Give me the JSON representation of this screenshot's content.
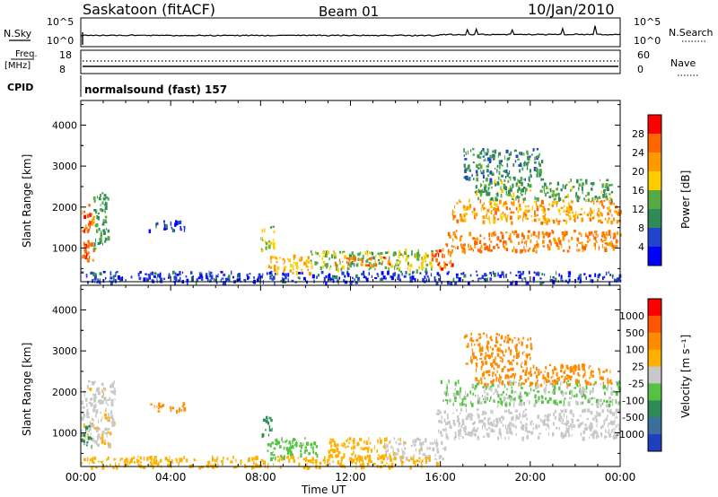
{
  "header": {
    "station": "Saskatoon (fitACF)",
    "beam": "Beam 01",
    "date": "10/Jan/2010"
  },
  "status_rows": {
    "nsky": {
      "label": "N.Sky",
      "ticks": [
        "10^5",
        "10^0"
      ]
    },
    "nsearch": {
      "label": "N.Search",
      "ticks": [
        "10^5",
        "10^0"
      ]
    },
    "freq": {
      "label_top": "Freq.",
      "label_bottom": "[MHz]",
      "ticks": [
        "18",
        "8"
      ]
    },
    "nave": {
      "label": "Nave",
      "ticks": [
        "60",
        "0"
      ]
    },
    "cpid": {
      "label": "CPID",
      "value": "normalsound (fast) 157"
    }
  },
  "time_axis": {
    "label": "Time UT",
    "ticks": [
      "00:00",
      "04:00",
      "08:00",
      "12:00",
      "16:00",
      "20:00",
      "00:00"
    ]
  },
  "colors": {
    "power": [
      "#0000ff",
      "#2244cc",
      "#2e8b57",
      "#55aa44",
      "#ffcc00",
      "#ff9900",
      "#ff6600",
      "#ff0000"
    ],
    "velocity": [
      "#1e3fbf",
      "#3a6fa0",
      "#2e8b57",
      "#55c244",
      "#c8c8c8",
      "#ffb000",
      "#ff8c00",
      "#ff5500",
      "#ff0000"
    ]
  },
  "chart_data": [
    {
      "type": "heatmap",
      "quantity": "power",
      "ylabel": "Slant Range [km]",
      "yticks": [
        "1000",
        "2000",
        "3000",
        "4000"
      ],
      "ylim": [
        180,
        4600
      ],
      "xlim": [
        0,
        24
      ],
      "colorbar": {
        "label": "Power [dB]",
        "ticks": [
          "4",
          "8",
          "12",
          "16",
          "20",
          "24",
          "28"
        ],
        "range": [
          0,
          32
        ]
      },
      "regions": [
        {
          "t0": 0.0,
          "t1": 0.55,
          "r0": 700,
          "r1": 2100,
          "v": 26
        },
        {
          "t0": 0.55,
          "t1": 1.2,
          "r0": 1000,
          "r1": 2400,
          "v": 12
        },
        {
          "t0": 3.0,
          "t1": 4.6,
          "r0": 1450,
          "r1": 1700,
          "v": 5
        },
        {
          "t0": 8.0,
          "t1": 8.6,
          "r0": 950,
          "r1": 1550,
          "v": 16
        },
        {
          "t0": 8.3,
          "t1": 10.2,
          "r0": 400,
          "r1": 850,
          "v": 20
        },
        {
          "t0": 10.2,
          "t1": 14.2,
          "r0": 500,
          "r1": 950,
          "v": 14
        },
        {
          "t0": 11.2,
          "t1": 13.8,
          "r0": 600,
          "r1": 800,
          "v": 25
        },
        {
          "t0": 14.0,
          "t1": 15.6,
          "r0": 450,
          "r1": 1000,
          "v": 16
        },
        {
          "t0": 15.6,
          "t1": 16.5,
          "r0": 500,
          "r1": 1000,
          "v": 26
        },
        {
          "t0": 16.2,
          "t1": 24.0,
          "r0": 950,
          "r1": 1450,
          "v": 24
        },
        {
          "t0": 16.5,
          "t1": 24.0,
          "r0": 1650,
          "r1": 2200,
          "v": 22
        },
        {
          "t0": 17.5,
          "t1": 23.6,
          "r0": 2200,
          "r1": 2700,
          "v": 13
        },
        {
          "t0": 17.0,
          "t1": 20.5,
          "r0": 2700,
          "r1": 3450,
          "v": 10
        },
        {
          "t0": 0.0,
          "t1": 24.0,
          "r0": 180,
          "r1": 450,
          "v": 5
        }
      ]
    },
    {
      "type": "heatmap",
      "quantity": "velocity",
      "ylabel": "Slant Range [km]",
      "yticks": [
        "1000",
        "2000",
        "3000",
        "4000"
      ],
      "ylim": [
        180,
        4600
      ],
      "xlim": [
        0,
        24
      ],
      "colorbar": {
        "label": "Velocity [m s⁻¹]",
        "ticks": [
          "1000",
          "500",
          "100",
          "25",
          "-25",
          "-100",
          "-500",
          "-1000"
        ]
      },
      "regions": [
        {
          "t0": 0.0,
          "t1": 1.5,
          "r0": 700,
          "r1": 2300,
          "v": -10
        },
        {
          "t0": 0.0,
          "t1": 0.5,
          "r0": 700,
          "r1": 1200,
          "v": 120
        },
        {
          "t0": 3.0,
          "t1": 4.6,
          "r0": 1550,
          "r1": 1750,
          "v": -150
        },
        {
          "t0": 8.0,
          "t1": 8.5,
          "r0": 900,
          "r1": 1450,
          "v": 150
        },
        {
          "t0": 8.2,
          "t1": 10.5,
          "r0": 400,
          "r1": 900,
          "v": 60
        },
        {
          "t0": 11.0,
          "t1": 13.8,
          "r0": 380,
          "r1": 900,
          "v": -60
        },
        {
          "t0": 13.5,
          "t1": 16.2,
          "r0": 380,
          "r1": 900,
          "v": -10
        },
        {
          "t0": 15.8,
          "t1": 24.0,
          "r0": 900,
          "r1": 1600,
          "v": 0
        },
        {
          "t0": 16.0,
          "t1": 24.0,
          "r0": 1700,
          "r1": 2300,
          "v": 30
        },
        {
          "t0": 17.5,
          "t1": 23.6,
          "r0": 2200,
          "r1": 2700,
          "v": -300
        },
        {
          "t0": 17.0,
          "t1": 20.0,
          "r0": 2700,
          "r1": 3450,
          "v": -150
        },
        {
          "t0": 0.0,
          "t1": 16.0,
          "r0": 180,
          "r1": 450,
          "v": -60
        }
      ]
    }
  ]
}
